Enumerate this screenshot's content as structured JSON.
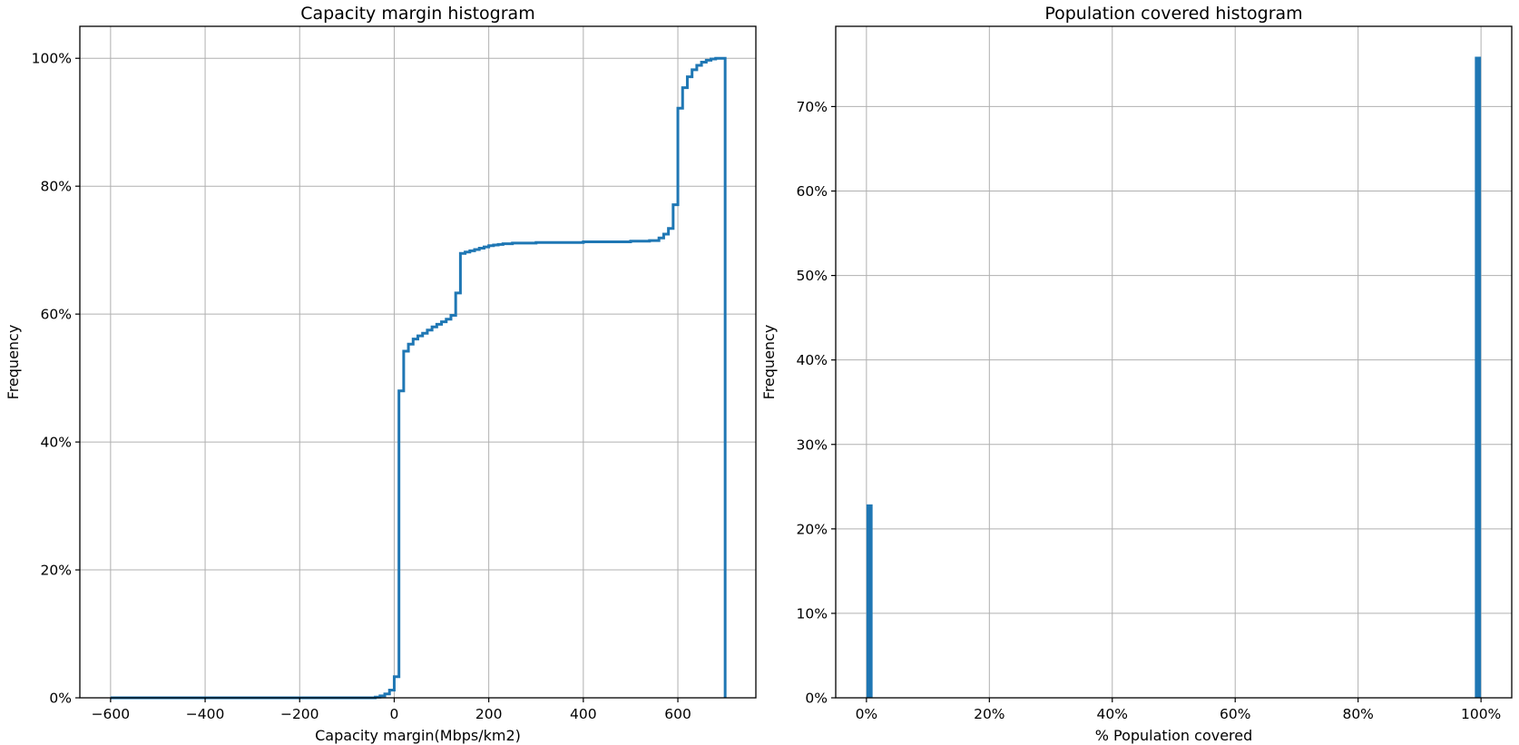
{
  "chart_data": [
    {
      "type": "line",
      "title": "Capacity margin histogram",
      "xlabel": "Capacity margin(Mbps/km2)",
      "ylabel": "Frequency",
      "xlim": [
        -665,
        765
      ],
      "ylim": [
        0,
        105
      ],
      "xticks": [
        -600,
        -400,
        -200,
        0,
        200,
        400,
        600
      ],
      "xtick_labels": [
        "−600",
        "−400",
        "−200",
        "0",
        "200",
        "400",
        "600"
      ],
      "yticks": [
        0,
        20,
        40,
        60,
        80,
        100
      ],
      "ytick_labels": [
        "0%",
        "20%",
        "40%",
        "60%",
        "80%",
        "100%"
      ],
      "grid": true,
      "color": "#1f77b4",
      "series": [
        {
          "step": "cumulative",
          "x": [
            -600,
            -50,
            -40,
            -30,
            -20,
            -10,
            0,
            10,
            20,
            30,
            40,
            50,
            60,
            70,
            80,
            90,
            100,
            110,
            120,
            130,
            140,
            150,
            160,
            170,
            180,
            190,
            200,
            210,
            220,
            230,
            240,
            250,
            300,
            400,
            500,
            540,
            560,
            570,
            580,
            590,
            600,
            610,
            620,
            630,
            640,
            650,
            660,
            670,
            680,
            690,
            700,
            700
          ],
          "y": [
            0,
            0,
            0.1,
            0.3,
            0.6,
            1.2,
            3.3,
            48.0,
            54.2,
            55.3,
            56.1,
            56.6,
            57.0,
            57.5,
            58.0,
            58.4,
            58.8,
            59.2,
            59.8,
            63.3,
            69.5,
            69.7,
            69.9,
            70.1,
            70.3,
            70.5,
            70.7,
            70.8,
            70.9,
            71.0,
            71.0,
            71.1,
            71.2,
            71.3,
            71.4,
            71.5,
            71.9,
            72.5,
            73.4,
            77.1,
            92.2,
            95.4,
            97.1,
            98.2,
            98.9,
            99.4,
            99.7,
            99.9,
            100.0,
            100.0,
            100.0,
            0
          ]
        }
      ]
    },
    {
      "type": "bar",
      "title": "Population covered histogram",
      "xlabel": "% Population covered",
      "ylabel": "Frequency",
      "xlim": [
        -0.05,
        1.05
      ],
      "ylim": [
        0,
        79.5
      ],
      "xticks": [
        0,
        0.2,
        0.4,
        0.6,
        0.8,
        1.0
      ],
      "xtick_labels": [
        "0%",
        "20%",
        "40%",
        "60%",
        "80%",
        "100%"
      ],
      "yticks": [
        0,
        10,
        20,
        30,
        40,
        50,
        60,
        70
      ],
      "ytick_labels": [
        "0%",
        "10%",
        "20%",
        "30%",
        "40%",
        "50%",
        "60%",
        "70%"
      ],
      "grid": true,
      "color": "#1f77b4",
      "bins": [
        {
          "x0": 0.0,
          "x1": 0.01,
          "value": 22.9
        },
        {
          "x0": 0.99,
          "x1": 1.0,
          "value": 75.9
        }
      ]
    }
  ]
}
